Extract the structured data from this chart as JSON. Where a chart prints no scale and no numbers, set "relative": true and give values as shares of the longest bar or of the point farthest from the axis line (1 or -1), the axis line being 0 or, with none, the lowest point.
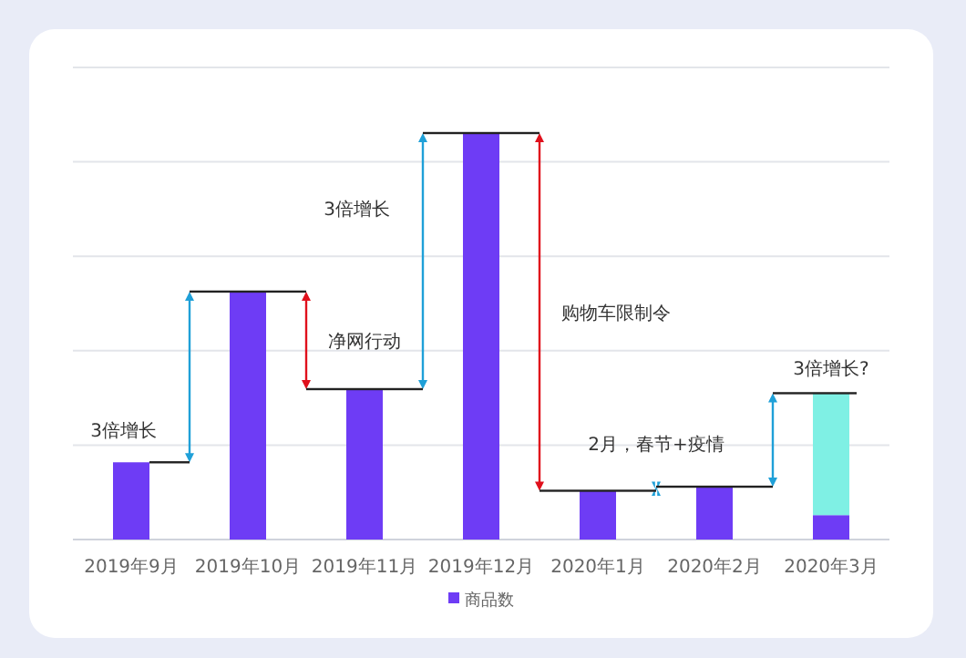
{
  "chart_data": {
    "type": "bar",
    "relative": true,
    "stacked": true,
    "grid": "y",
    "legend": "bottom",
    "categories": [
      "2019年9月",
      "2019年10月",
      "2019年11月",
      "2019年12月",
      "2020年1月",
      "2020年2月",
      "2020年3月"
    ],
    "series": [
      {
        "name": "商品数",
        "color": "#6e3cf5",
        "values": [
          0.19,
          0.61,
          0.37,
          1,
          0.12,
          0.13,
          0.06
        ]
      },
      {
        "color": "#7ff0e4",
        "values": [
          null,
          null,
          null,
          null,
          null,
          null,
          0.3
        ]
      }
    ],
    "annotations": [
      "3倍增长",
      "净网行动",
      "3倍增长",
      "购物车限制令",
      "2月，春节+疫情",
      "3倍增长?"
    ]
  }
}
